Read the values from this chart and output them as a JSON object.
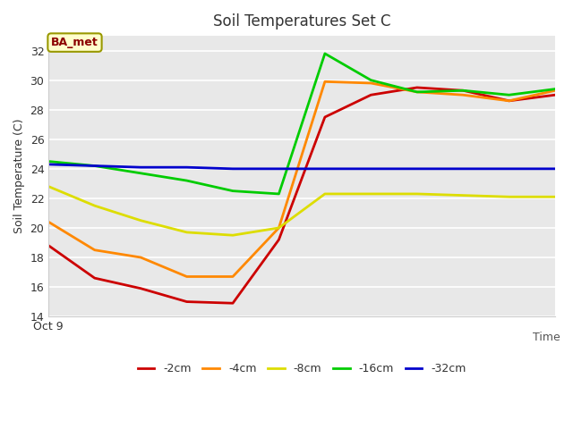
{
  "title": "Soil Temperatures Set C",
  "xlabel": "Time",
  "ylabel": "Soil Temperature (C)",
  "ylim": [
    14,
    33
  ],
  "yticks": [
    14,
    16,
    18,
    20,
    22,
    24,
    26,
    28,
    30,
    32
  ],
  "x_label_start": "Oct 9",
  "annotation": "BA_met",
  "fig_bg_color": "#ffffff",
  "plot_bg_color": "#e8e8e8",
  "grid_color": "#ffffff",
  "series": {
    "-2cm": {
      "color": "#cc0000",
      "y": [
        18.8,
        16.6,
        15.9,
        15.0,
        14.9,
        19.2,
        27.5,
        29.0,
        29.5,
        29.3,
        28.6,
        29.0
      ]
    },
    "-4cm": {
      "color": "#ff8800",
      "y": [
        20.4,
        18.5,
        18.0,
        16.7,
        16.7,
        20.0,
        29.9,
        29.8,
        29.2,
        29.0,
        28.6,
        29.3
      ]
    },
    "-8cm": {
      "color": "#dddd00",
      "y": [
        22.8,
        21.5,
        20.5,
        19.7,
        19.5,
        20.0,
        22.3,
        22.3,
        22.3,
        22.2,
        22.1,
        22.1
      ]
    },
    "-16cm": {
      "color": "#00cc00",
      "y": [
        24.5,
        24.2,
        23.7,
        23.2,
        22.5,
        22.3,
        31.8,
        30.0,
        29.2,
        29.3,
        29.0,
        29.4
      ]
    },
    "-32cm": {
      "color": "#0000cc",
      "y": [
        24.3,
        24.2,
        24.1,
        24.1,
        24.0,
        24.0,
        24.0,
        24.0,
        24.0,
        24.0,
        24.0,
        24.0
      ]
    }
  },
  "n_points": 12,
  "figsize": [
    6.4,
    4.8
  ],
  "dpi": 100
}
